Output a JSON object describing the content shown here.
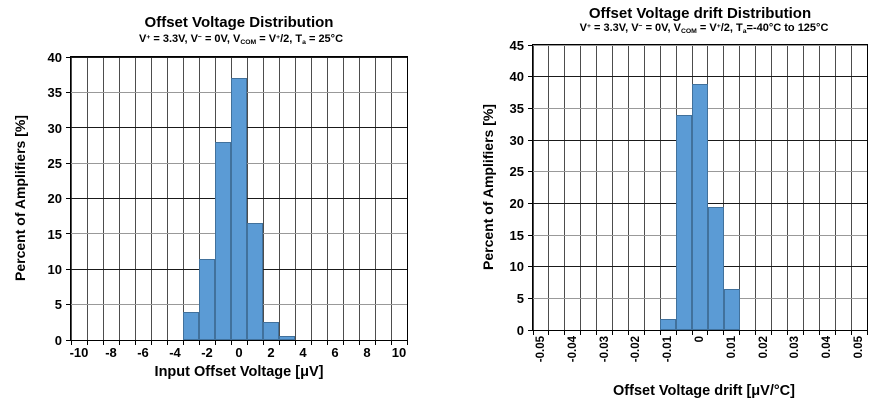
{
  "page": {
    "background": "#ffffff"
  },
  "chart_data": [
    {
      "type": "bar",
      "title": "Offset Voltage Distribution",
      "subtitle": "V+ = 3.3V, V- = 0V, VCOM = V+/2, Ta = 25°C",
      "subtitle_parts": [
        {
          "text": "V"
        },
        {
          "text": "+",
          "style": "sup"
        },
        {
          "text": " = 3.3V, V"
        },
        {
          "text": "−",
          "style": "sup"
        },
        {
          "text": " = 0V, V"
        },
        {
          "text": "COM",
          "style": "sub"
        },
        {
          "text": " = V"
        },
        {
          "text": "+",
          "style": "sup"
        },
        {
          "text": "/2, T"
        },
        {
          "text": "a",
          "style": "sub"
        },
        {
          "text": " = 25°C"
        }
      ],
      "xlabel": "Input Offset Voltage [μV]",
      "ylabel": "Percent of Amplifiers [%]",
      "categories": [
        -10,
        -9,
        -8,
        -7,
        -6,
        -5,
        -4,
        -3,
        -2,
        -1,
        0,
        1,
        2,
        3,
        4,
        5,
        6,
        7,
        8,
        9,
        10
      ],
      "values": [
        0,
        0,
        0,
        0,
        0,
        0,
        0,
        4,
        11.5,
        28,
        37,
        16.5,
        2.5,
        0.5,
        0,
        0,
        0,
        0,
        0,
        0,
        0
      ],
      "x_tick_labels": [
        "-10",
        "-8",
        "-6",
        "-4",
        "-2",
        "0",
        "2",
        "4",
        "6",
        "8",
        "10"
      ],
      "x_tick_every": 2,
      "x_ticks_rotated": false,
      "y_tick_labels": [
        "0",
        "5",
        "10",
        "15",
        "20",
        "25",
        "30",
        "35",
        "40"
      ],
      "ylim": [
        0,
        40
      ],
      "ytick_step": 5,
      "grid": "on",
      "legend": "none"
    },
    {
      "type": "bar",
      "title": "Offset Voltage drift Distribution",
      "subtitle": "V+ = 3.3V, V- = 0V, VCOM = V+/2, Ta=-40°C to 125°C",
      "subtitle_parts": [
        {
          "text": "V"
        },
        {
          "text": "+",
          "style": "sup"
        },
        {
          "text": " = 3.3V, V"
        },
        {
          "text": "−",
          "style": "sup"
        },
        {
          "text": " = 0V, V"
        },
        {
          "text": "COM",
          "style": "sub"
        },
        {
          "text": " = V"
        },
        {
          "text": "+",
          "style": "sup"
        },
        {
          "text": "/2, T"
        },
        {
          "text": "a",
          "style": "sub"
        },
        {
          "text": "=-40°C to 125°C"
        }
      ],
      "xlabel": "Offset Voltage drift [μV/°C]",
      "ylabel": "Percent of Amplifiers [%]",
      "categories": [
        -0.05,
        -0.045,
        -0.04,
        -0.035,
        -0.03,
        -0.025,
        -0.02,
        -0.015,
        -0.01,
        -0.005,
        0,
        0.005,
        0.01,
        0.015,
        0.02,
        0.025,
        0.03,
        0.035,
        0.04,
        0.045,
        0.05
      ],
      "values": [
        0,
        0,
        0,
        0,
        0,
        0,
        0,
        0,
        1.7,
        34,
        38.8,
        19.5,
        6.5,
        0,
        0,
        0,
        0,
        0,
        0,
        0,
        0
      ],
      "x_tick_labels": [
        "-0.05",
        "-0.04",
        "-0.03",
        "-0.02",
        "-0.01",
        "0",
        "0.01",
        "0.02",
        "0.03",
        "0.04",
        "0.05"
      ],
      "x_tick_every": 2,
      "x_ticks_rotated": true,
      "y_tick_labels": [
        "0",
        "5",
        "10",
        "15",
        "20",
        "25",
        "30",
        "35",
        "40",
        "45"
      ],
      "ylim": [
        0,
        45
      ],
      "ytick_step": 5,
      "grid": "on",
      "legend": "none"
    }
  ],
  "style": {
    "bar_fill": "#5B9BD5",
    "bar_border": "#41719C",
    "grid_vertical": "#4d4d4d",
    "grid_minor": "#999999",
    "grid_major": "#1a1a1a",
    "plot_border": "#000000",
    "text_color": "#000000"
  }
}
